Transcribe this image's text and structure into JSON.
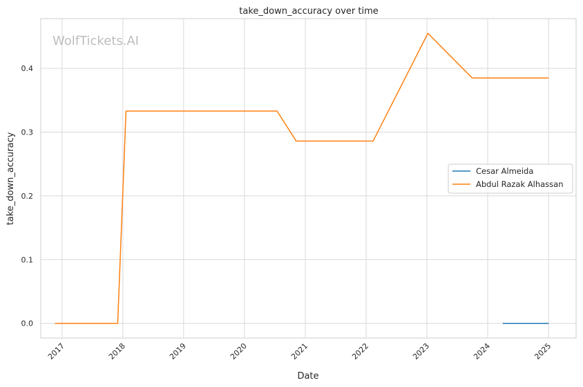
{
  "watermark": "WolfTickets.AI",
  "chart_data": {
    "type": "line",
    "title": "take_down_accuracy over time",
    "xlabel": "Date",
    "ylabel": "take_down_accuracy",
    "x_ticks": [
      "2017",
      "2018",
      "2019",
      "2020",
      "2021",
      "2022",
      "2023",
      "2024",
      "2025"
    ],
    "y_ticks": [
      "0.0",
      "0.1",
      "0.2",
      "0.3",
      "0.4"
    ],
    "xlim": [
      "2016-08-26",
      "2025-06-15"
    ],
    "ylim": [
      -0.023,
      0.478
    ],
    "grid": true,
    "legend_position": "center-right",
    "series": [
      {
        "name": "Cesar Almeida",
        "color": "#1f77b4",
        "points": [
          [
            "2024-04-01",
            0.0
          ],
          [
            "2025-01-01",
            0.0
          ]
        ]
      },
      {
        "name": "Abdul Razak Alhassan",
        "color": "#ff7f0e",
        "points": [
          [
            "2016-11-19",
            0.0
          ],
          [
            "2017-12-01",
            0.0
          ],
          [
            "2018-01-20",
            0.333
          ],
          [
            "2020-07-15",
            0.333
          ],
          [
            "2020-11-07",
            0.286
          ],
          [
            "2022-02-12",
            0.286
          ],
          [
            "2023-01-07",
            0.455
          ],
          [
            "2023-09-30",
            0.385
          ],
          [
            "2025-01-01",
            0.385
          ]
        ]
      }
    ]
  }
}
